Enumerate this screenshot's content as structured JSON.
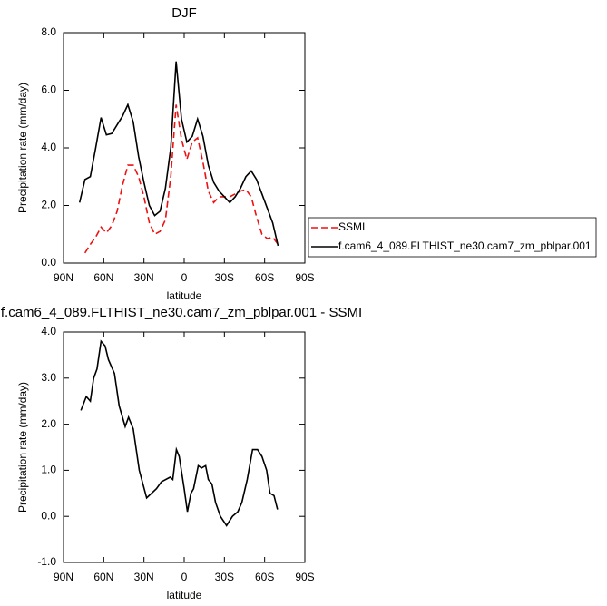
{
  "chart_data": [
    {
      "type": "line",
      "title": "DJF",
      "xlabel": "latitude",
      "ylabel": "Precipitation rate (mm/day)",
      "x": [
        78,
        74,
        70,
        66,
        62,
        58,
        54,
        50,
        46,
        42,
        38,
        34,
        30,
        26,
        22,
        18,
        14,
        10,
        6,
        2,
        -2,
        -6,
        -10,
        -14,
        -18,
        -22,
        -26,
        -30,
        -34,
        -38,
        -42,
        -46,
        -50,
        -54,
        -58,
        -62,
        -66,
        -70
      ],
      "series": [
        {
          "name": "SSMI",
          "color": "#ee1111",
          "dashed": true,
          "values": [
            null,
            0.35,
            0.65,
            0.9,
            1.25,
            1.05,
            1.3,
            1.8,
            2.7,
            3.4,
            3.4,
            3.0,
            2.3,
            1.4,
            1.0,
            1.1,
            1.5,
            3.0,
            5.5,
            4.3,
            3.6,
            4.2,
            4.35,
            3.5,
            2.5,
            2.1,
            2.3,
            2.3,
            2.3,
            2.4,
            2.5,
            2.55,
            2.3,
            1.6,
            1.0,
            0.85,
            0.9,
            0.65
          ]
        },
        {
          "name": "f.cam6_4_089.FLTHIST_ne30.cam7_zm_pblpar.001",
          "color": "#000000",
          "dashed": false,
          "values": [
            2.1,
            2.9,
            3.0,
            4.0,
            5.05,
            4.45,
            4.5,
            4.8,
            5.1,
            5.5,
            4.9,
            3.7,
            2.8,
            2.0,
            1.65,
            1.8,
            2.6,
            4.0,
            7.0,
            5.0,
            4.2,
            4.4,
            5.0,
            4.4,
            3.4,
            2.8,
            2.5,
            2.3,
            2.1,
            2.3,
            2.6,
            3.0,
            3.2,
            2.9,
            2.4,
            1.9,
            1.4,
            0.6
          ]
        }
      ],
      "xlim": [
        90,
        -90
      ],
      "xticks": [
        {
          "value": 90,
          "label": "90N"
        },
        {
          "value": 60,
          "label": "60N"
        },
        {
          "value": 30,
          "label": "30N"
        },
        0,
        {
          "value": -30,
          "label": "30S"
        },
        {
          "value": -60,
          "label": "60S"
        },
        {
          "value": -90,
          "label": "90S"
        }
      ],
      "ylim": [
        0,
        8
      ],
      "yticks": [
        {
          "value": 0,
          "label": "0.0"
        },
        {
          "value": 2,
          "label": "2.0"
        },
        {
          "value": 4,
          "label": "4.0"
        },
        {
          "value": 6,
          "label": "6.0"
        },
        {
          "value": 8,
          "label": "8.0"
        }
      ],
      "legend": "right"
    },
    {
      "type": "line",
      "title": "f.cam6_4_089.FLTHIST_ne30.cam7_zm_pblpar.001 - SSMI",
      "xlabel": "latitude",
      "ylabel": "Precipitation rate (mm/day)",
      "x": [
        77,
        73,
        70,
        67.5,
        65,
        62,
        59,
        56.5,
        52,
        48.5,
        44,
        41.5,
        38,
        33.5,
        28,
        20.7,
        17,
        10.5,
        8.5,
        5.8,
        3.7,
        0,
        -2.4,
        -5,
        -7,
        -10.5,
        -13,
        -16,
        -18,
        -20.7,
        -23.4,
        -27,
        -31.6,
        -36,
        -40,
        -43,
        -47,
        -51,
        -54.7,
        -58,
        -61.5,
        -64,
        -67,
        -69.6
      ],
      "series": [
        {
          "color": "#000000",
          "dashed": false,
          "values": [
            2.3,
            2.6,
            2.5,
            3.0,
            3.2,
            3.8,
            3.7,
            3.4,
            3.1,
            2.4,
            1.95,
            2.15,
            1.9,
            1.0,
            0.4,
            0.6,
            0.75,
            0.85,
            0.8,
            1.45,
            1.3,
            0.6,
            0.1,
            0.5,
            0.6,
            1.1,
            1.05,
            1.1,
            0.8,
            0.7,
            0.3,
            0.0,
            -0.2,
            0.0,
            0.1,
            0.3,
            0.8,
            1.45,
            1.45,
            1.3,
            1.0,
            0.5,
            0.45,
            0.15
          ]
        }
      ],
      "xlim": [
        90,
        -90
      ],
      "xticks": [
        {
          "value": 90,
          "label": "90N"
        },
        {
          "value": 60,
          "label": "60N"
        },
        {
          "value": 30,
          "label": "30N"
        },
        0,
        {
          "value": -30,
          "label": "30S"
        },
        {
          "value": -60,
          "label": "60S"
        },
        {
          "value": -90,
          "label": "90S"
        }
      ],
      "ylim": [
        -1,
        4
      ],
      "yticks": [
        {
          "value": -1,
          "label": "-1.0"
        },
        {
          "value": 0,
          "label": "0.0"
        },
        {
          "value": 1,
          "label": "1.0"
        },
        {
          "value": 2,
          "label": "2.0"
        },
        {
          "value": 3,
          "label": "3.0"
        },
        {
          "value": 4,
          "label": "4.0"
        }
      ]
    }
  ]
}
